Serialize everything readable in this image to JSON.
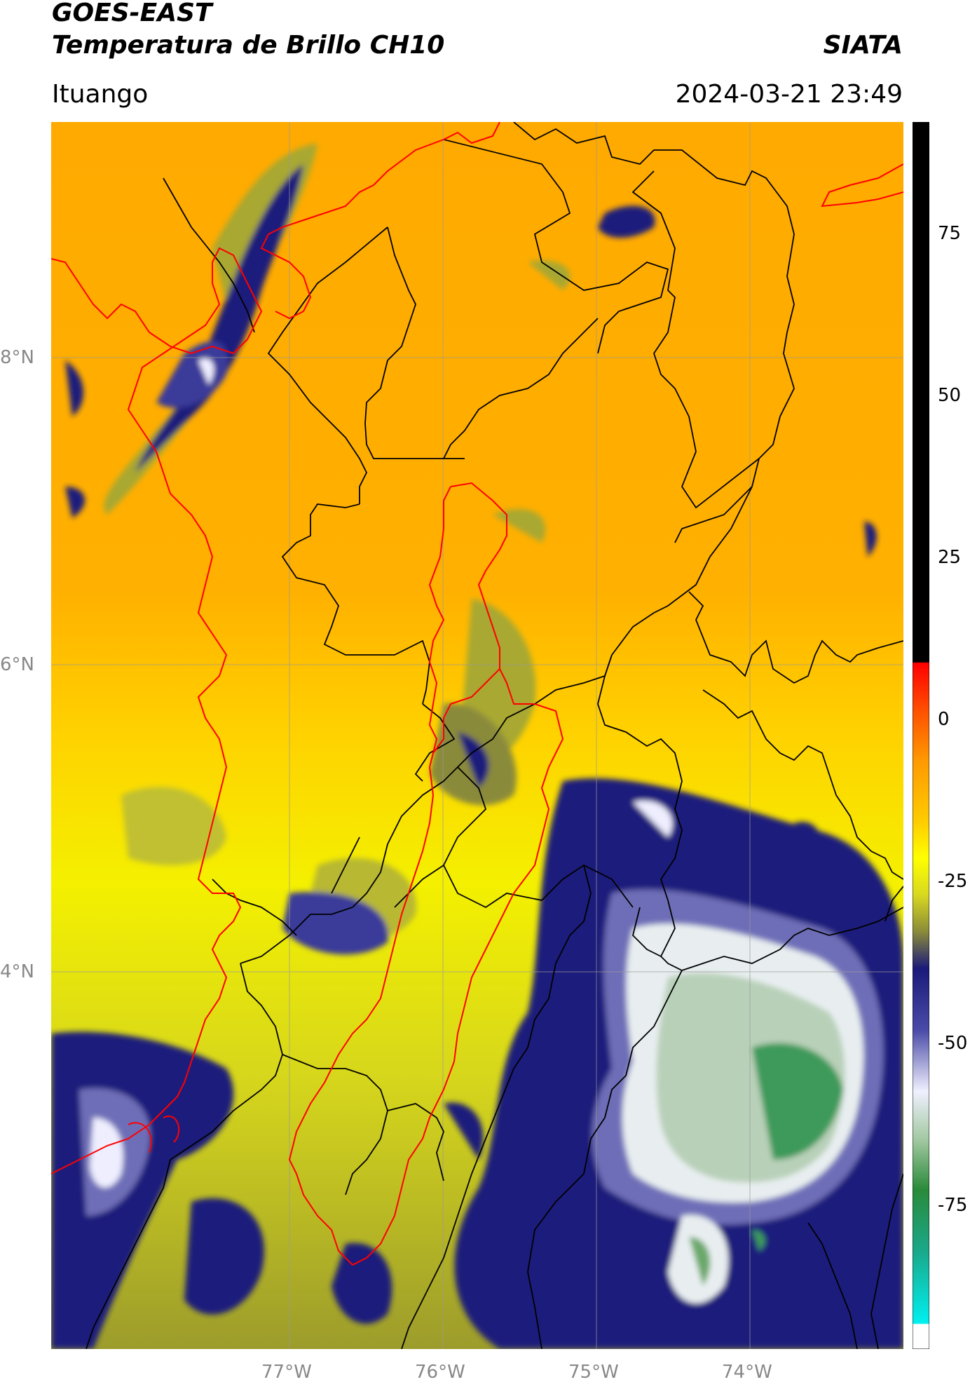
{
  "header": {
    "satellite": "GOES-EAST",
    "product": "Temperatura de Brillo CH10",
    "brand": "SIATA",
    "region": "Ituango",
    "timestamp": "2024-03-21 23:49"
  },
  "map": {
    "lat_labels": [
      "8°N",
      "6°N",
      "4°N"
    ],
    "lon_labels": [
      "77°W",
      "76°W",
      "75°W",
      "74°W"
    ],
    "colors": {
      "orange": "#ffa500",
      "yellow": "#ffff00",
      "olive": "#a8a832",
      "navy": "#1c1c7c",
      "white": "#f0f0ff",
      "green": "#3c9a5a",
      "border_black": "#000000",
      "border_red": "#ff0000"
    }
  },
  "colorbar": {
    "tick_labels": [
      "75",
      "50",
      "25",
      "0",
      "-25",
      "-50",
      "-75"
    ],
    "ticks": [
      75,
      50,
      25,
      0,
      -25,
      -50,
      -75
    ],
    "range": [
      -90,
      90
    ]
  }
}
